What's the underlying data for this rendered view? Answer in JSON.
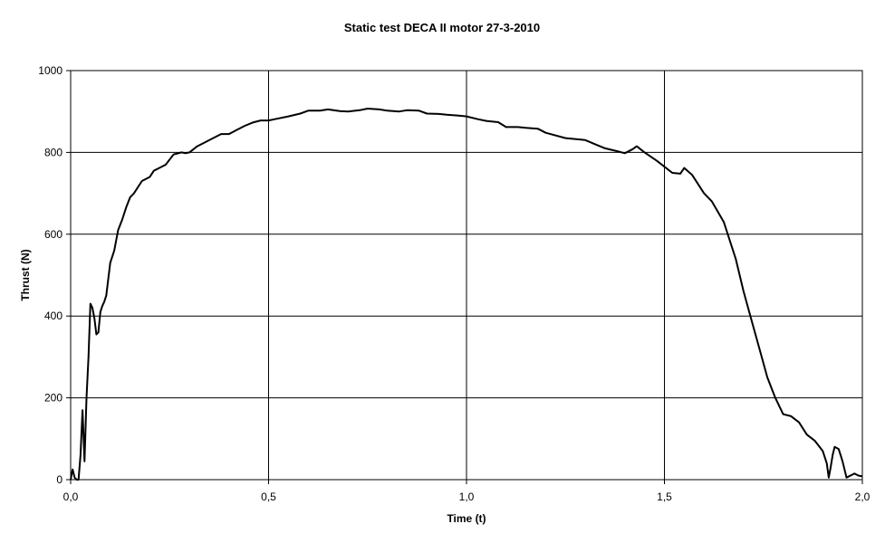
{
  "chart_data": {
    "type": "line",
    "title": "Static test DECA II motor 27-3-2010",
    "xlabel": "Time (t)",
    "ylabel": "Thrust (N)",
    "xlim": [
      0,
      2
    ],
    "ylim": [
      0,
      1000
    ],
    "x_ticks": [
      0,
      0.5,
      1,
      1.5,
      2
    ],
    "x_tick_labels": [
      "0,0",
      "0,5",
      "1,0",
      "1,5",
      "2,0"
    ],
    "y_ticks": [
      0,
      200,
      400,
      600,
      800,
      1000
    ],
    "y_tick_labels": [
      "0",
      "200",
      "400",
      "600",
      "800",
      "1000"
    ],
    "grid": true,
    "legend": "none",
    "line_color": "#000000",
    "series": [
      {
        "x": [
          0.0,
          0.005,
          0.01,
          0.015,
          0.02,
          0.025,
          0.03,
          0.035,
          0.04,
          0.045,
          0.05,
          0.055,
          0.06,
          0.065,
          0.07,
          0.075,
          0.08,
          0.085,
          0.09,
          0.1,
          0.11,
          0.12,
          0.13,
          0.14,
          0.15,
          0.16,
          0.18,
          0.2,
          0.21,
          0.22,
          0.24,
          0.26,
          0.28,
          0.29,
          0.3,
          0.32,
          0.34,
          0.36,
          0.38,
          0.4,
          0.42,
          0.44,
          0.46,
          0.48,
          0.5,
          0.52,
          0.55,
          0.58,
          0.6,
          0.63,
          0.65,
          0.68,
          0.7,
          0.73,
          0.75,
          0.78,
          0.8,
          0.83,
          0.85,
          0.88,
          0.9,
          0.93,
          0.95,
          0.98,
          1.0,
          1.03,
          1.05,
          1.08,
          1.1,
          1.13,
          1.15,
          1.18,
          1.2,
          1.25,
          1.3,
          1.33,
          1.35,
          1.38,
          1.4,
          1.42,
          1.43,
          1.45,
          1.48,
          1.5,
          1.52,
          1.54,
          1.55,
          1.57,
          1.6,
          1.62,
          1.65,
          1.68,
          1.7,
          1.72,
          1.74,
          1.76,
          1.78,
          1.8,
          1.82,
          1.84,
          1.86,
          1.88,
          1.9,
          1.91,
          1.915,
          1.92,
          1.925,
          1.93,
          1.94,
          1.945,
          1.95,
          1.96,
          1.97,
          1.98,
          1.99,
          2.0
        ],
        "y": [
          0,
          25,
          5,
          0,
          0,
          60,
          170,
          45,
          200,
          300,
          430,
          420,
          395,
          355,
          360,
          410,
          425,
          435,
          450,
          530,
          560,
          610,
          635,
          665,
          690,
          700,
          730,
          740,
          755,
          760,
          770,
          795,
          800,
          798,
          800,
          815,
          825,
          835,
          845,
          845,
          855,
          865,
          873,
          878,
          878,
          882,
          888,
          895,
          902,
          902,
          905,
          901,
          900,
          903,
          907,
          905,
          902,
          900,
          903,
          902,
          895,
          894,
          892,
          890,
          888,
          881,
          877,
          874,
          862,
          862,
          860,
          858,
          848,
          835,
          830,
          818,
          810,
          803,
          798,
          808,
          815,
          800,
          780,
          765,
          750,
          748,
          762,
          745,
          700,
          680,
          630,
          540,
          460,
          390,
          320,
          250,
          200,
          160,
          155,
          140,
          110,
          95,
          70,
          40,
          5,
          30,
          60,
          80,
          75,
          60,
          45,
          5,
          10,
          15,
          10,
          8
        ]
      }
    ]
  }
}
